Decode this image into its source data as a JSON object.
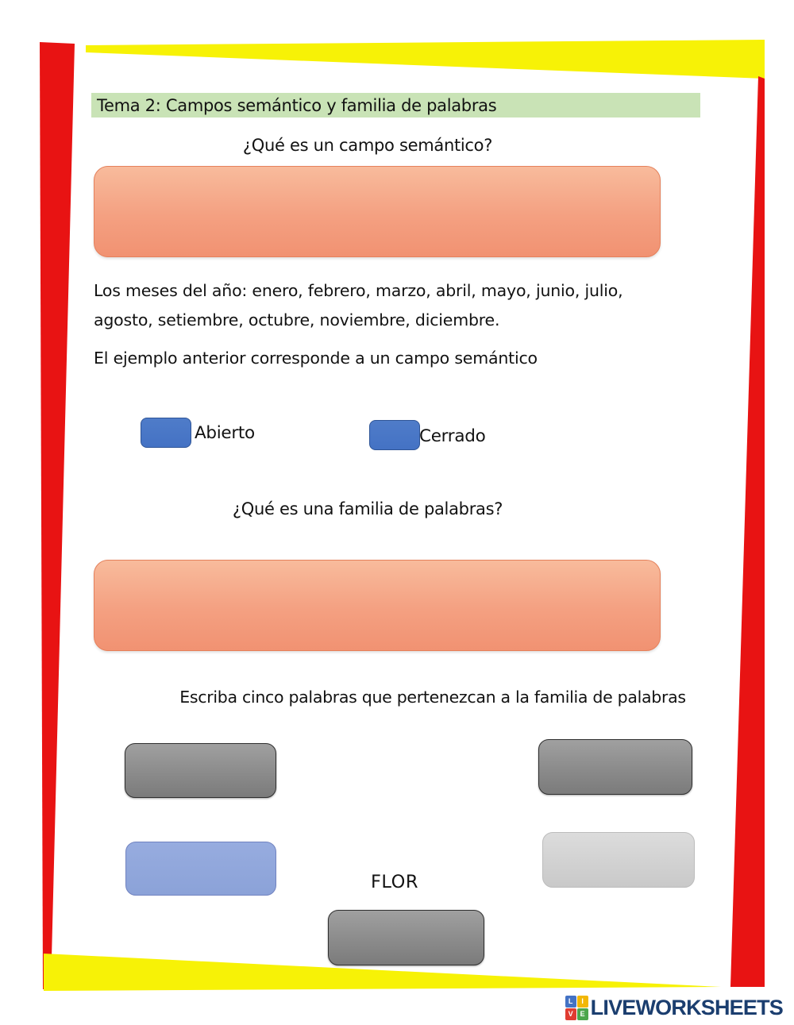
{
  "header": {
    "title": "Tema 2: Campos semántico y familia de palabras"
  },
  "section_semantic_field": {
    "question": "¿Qué es un campo semántico?",
    "example_text": "Los meses del año: enero, febrero, marzo, abril, mayo, junio, julio, agosto, setiembre, octubre, noviembre, diciembre.",
    "statement": "El ejemplo anterior corresponde a un campo semántico",
    "options": [
      {
        "label": "Abierto"
      },
      {
        "label": "Cerrado"
      }
    ]
  },
  "section_word_family": {
    "question": "¿Qué es una familia de palabras?",
    "instruction": "Escriba cinco palabras que pertenezcan a la familia de palabras",
    "keyword": "FLOR",
    "answer_slots": 5
  },
  "footer": {
    "brand": "LIVEWORKSHEETS",
    "logo_letters": [
      "L",
      "I",
      "V",
      "E"
    ]
  },
  "colors": {
    "accent_yellow": "#f7f206",
    "accent_red": "#e81313",
    "header_green": "#c9e3b6",
    "answer_orange": "#f4a081",
    "option_blue": "#4472c4",
    "word_box_gray": "#8b8b8b",
    "word_box_blue": "#8ba2d8",
    "word_box_light_gray": "#cfcfcf",
    "brand_navy": "#1b3e6f",
    "logo_blue": "#4472c4",
    "logo_yellow": "#f2b705",
    "logo_red": "#e03c31",
    "logo_green": "#4ca64c"
  }
}
